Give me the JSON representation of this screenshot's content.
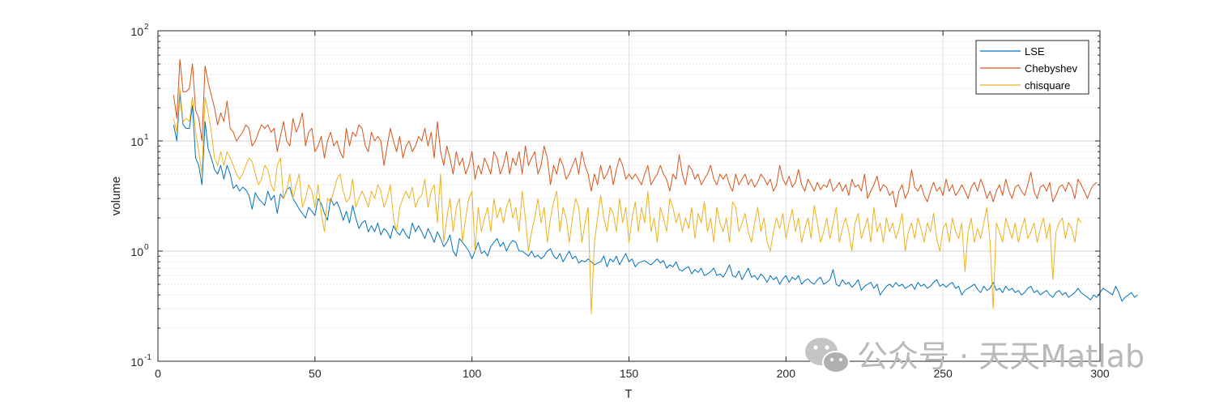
{
  "chart_data": {
    "type": "line",
    "title": "",
    "xlabel": "T",
    "ylabel": "volume",
    "xlim": [
      0,
      300
    ],
    "ylim": [
      0.1,
      100
    ],
    "yscale": "log",
    "grid": true,
    "minor_grid": true,
    "legend_position": "top-right",
    "x_ticks": [
      "0",
      "50",
      "100",
      "150",
      "200",
      "250",
      "300"
    ],
    "y_ticks": [
      {
        "base": "10",
        "exp": "-1"
      },
      {
        "base": "10",
        "exp": "0"
      },
      {
        "base": "10",
        "exp": "1"
      },
      {
        "base": "10",
        "exp": "2"
      }
    ],
    "x_start": 5,
    "x_step": 1,
    "series": [
      {
        "name": "LSE",
        "color": "#0072BD",
        "values": [
          14,
          10,
          27,
          14,
          13,
          13,
          21,
          7,
          6,
          4,
          15,
          8.5,
          7,
          5.5,
          5,
          6,
          4.5,
          6,
          5,
          3.7,
          4,
          3.5,
          3.8,
          3.6,
          3.2,
          2.4,
          3.4,
          3,
          2.8,
          2.6,
          3.5,
          2.9,
          3.2,
          2.2,
          3.3,
          3,
          3.6,
          3.8,
          3,
          2.7,
          2.4,
          2.2,
          2,
          2.5,
          2.3,
          2.1,
          3,
          2.7,
          2.2,
          1.9,
          3,
          2.6,
          2.8,
          2.4,
          1.9,
          2.3,
          1.8,
          2.6,
          2,
          1.6,
          1.8,
          1.9,
          1.5,
          1.7,
          1.5,
          1.8,
          1.4,
          1.6,
          1.5,
          1.3,
          1.7,
          1.5,
          1.4,
          1.6,
          1.4,
          1.3,
          1.8,
          1.5,
          1.7,
          1.5,
          1.3,
          1.6,
          1.4,
          1.2,
          1.5,
          1.3,
          1.1,
          1.2,
          1.4,
          1,
          0.9,
          1.3,
          1.2,
          1.1,
          1,
          0.85,
          1,
          1.2,
          0.95,
          1,
          0.9,
          1.1,
          1.2,
          1.3,
          1.1,
          1.2,
          1,
          1.15,
          1.25,
          1.2,
          1,
          1,
          0.95,
          0.9,
          1,
          0.88,
          0.92,
          0.85,
          0.9,
          1,
          1.05,
          0.9,
          0.85,
          0.95,
          0.8,
          0.9,
          1,
          0.85,
          0.9,
          0.78,
          0.82,
          0.8,
          0.85,
          0.8,
          0.75,
          0.78,
          0.8,
          0.9,
          0.72,
          0.85,
          0.8,
          0.9,
          0.75,
          0.85,
          0.95,
          0.8,
          0.85,
          0.72,
          0.78,
          0.8,
          0.82,
          0.78,
          0.75,
          0.8,
          0.85,
          0.78,
          0.82,
          0.7,
          0.75,
          0.72,
          0.8,
          0.68,
          0.66,
          0.7,
          0.72,
          0.62,
          0.68,
          0.64,
          0.7,
          0.6,
          0.62,
          0.65,
          0.7,
          0.6,
          0.62,
          0.58,
          0.65,
          0.75,
          0.6,
          0.58,
          0.66,
          0.55,
          0.62,
          0.7,
          0.58,
          0.6,
          0.55,
          0.62,
          0.58,
          0.52,
          0.6,
          0.55,
          0.58,
          0.5,
          0.56,
          0.6,
          0.52,
          0.58,
          0.55,
          0.6,
          0.5,
          0.54,
          0.56,
          0.52,
          0.5,
          0.55,
          0.58,
          0.5,
          0.52,
          0.55,
          0.68,
          0.5,
          0.48,
          0.55,
          0.5,
          0.52,
          0.47,
          0.5,
          0.55,
          0.44,
          0.48,
          0.5,
          0.52,
          0.46,
          0.5,
          0.4,
          0.44,
          0.48,
          0.5,
          0.47,
          0.52,
          0.48,
          0.5,
          0.46,
          0.48,
          0.5,
          0.45,
          0.52,
          0.48,
          0.5,
          0.46,
          0.48,
          0.52,
          0.55,
          0.48,
          0.5,
          0.47,
          0.5,
          0.52,
          0.46,
          0.48,
          0.4,
          0.44,
          0.46,
          0.48,
          0.5,
          0.45,
          0.42,
          0.48,
          0.44,
          0.46,
          0.52,
          0.44,
          0.46,
          0.42,
          0.48,
          0.44,
          0.46,
          0.42,
          0.44,
          0.4,
          0.42,
          0.46,
          0.48,
          0.42,
          0.44,
          0.4,
          0.42,
          0.44,
          0.4,
          0.38,
          0.42,
          0.44,
          0.4,
          0.42,
          0.38,
          0.4,
          0.42,
          0.46,
          0.42,
          0.4,
          0.38,
          0.36,
          0.4,
          0.38,
          0.42,
          0.46,
          0.44,
          0.42,
          0.4,
          0.48,
          0.42,
          0.35,
          0.38,
          0.4,
          0.42,
          0.38,
          0.4
        ]
      },
      {
        "name": "Chebyshev",
        "color": "#D95319",
        "values": [
          26,
          16,
          55,
          28,
          28,
          30,
          50,
          19,
          16,
          10,
          48,
          34,
          26,
          20,
          14,
          18,
          15,
          23,
          13,
          12,
          10,
          11,
          12,
          14,
          13,
          9,
          10,
          12,
          14,
          13,
          14,
          12,
          13,
          8,
          11,
          15,
          10,
          9,
          16,
          12,
          14,
          18,
          9,
          12,
          13,
          8,
          9,
          11,
          7,
          10,
          12,
          9,
          10,
          8,
          7,
          13,
          9,
          12,
          11,
          14,
          13,
          9,
          8,
          12,
          10,
          11,
          10,
          6,
          9,
          13,
          10,
          8,
          11,
          7,
          9,
          10,
          8,
          9,
          11,
          10,
          13,
          9,
          12,
          7,
          15,
          8,
          6,
          9,
          7,
          5,
          8,
          6,
          7,
          5,
          6,
          8,
          4.5,
          6,
          5,
          7,
          6,
          5,
          8,
          7,
          5,
          6,
          8,
          5,
          7,
          6,
          8,
          5,
          9,
          6,
          7,
          8,
          5,
          6,
          9,
          7,
          4,
          6,
          5,
          7,
          6,
          4.5,
          5,
          6,
          7,
          5,
          8,
          6,
          5,
          3.5,
          5,
          4,
          6,
          4.5,
          5,
          6,
          4,
          5.5,
          7,
          6,
          4.5,
          5,
          4.5,
          5,
          4.5,
          4,
          5,
          6,
          4,
          4.5,
          5,
          6,
          5,
          4.5,
          3.5,
          5,
          4.5,
          7.5,
          5,
          4,
          6,
          5.5,
          4.5,
          5,
          4,
          4.5,
          5,
          6,
          4.5,
          4,
          5,
          4.5,
          5,
          4,
          3.5,
          5,
          4,
          4.5,
          5,
          4,
          4.5,
          3.8,
          4.2,
          5,
          4.6,
          4,
          4.5,
          3.5,
          4,
          6,
          4.5,
          4,
          4.8,
          3.8,
          4.2,
          5.5,
          4,
          3.5,
          4.5,
          4,
          3.5,
          4.2,
          3.6,
          4,
          3.8,
          4.5,
          3.5,
          3.8,
          4.2,
          3.5,
          4,
          3.2,
          4.5,
          3.8,
          4,
          3.5,
          5,
          3,
          3.5,
          4,
          4.8,
          3.5,
          4,
          3.8,
          3.2,
          3.5,
          2.5,
          3.5,
          4,
          3,
          3.5,
          5.5,
          3.8,
          3.5,
          4,
          3.2,
          2.8,
          3.5,
          4.2,
          3.5,
          3.8,
          3.2,
          4.5,
          3.5,
          4,
          3.2,
          3.5,
          4,
          3.5,
          3,
          3.8,
          4.2,
          3.5,
          4.5,
          3.8,
          3,
          3.5,
          2.8,
          3.5,
          4,
          3.2,
          4.5,
          3.5,
          3,
          3.8,
          4,
          3.5,
          3.2,
          4,
          5.2,
          3.5,
          3,
          3.8,
          4,
          3.5,
          4.2,
          2.8,
          3.2,
          3.8,
          4,
          3.5,
          4.2,
          3.8,
          3,
          4.5,
          4,
          3.5,
          3,
          3.6,
          4,
          4.2
        ]
      },
      {
        "name": "chisquare",
        "color": "#EDB120",
        "values": [
          16,
          12,
          30,
          15,
          16,
          15,
          25,
          12,
          8,
          5,
          25,
          18,
          12,
          7,
          6,
          8,
          6,
          8,
          7,
          6,
          5,
          4.5,
          5,
          6,
          7,
          6.5,
          5,
          4,
          4.5,
          6,
          5.5,
          4,
          3.5,
          6,
          7,
          3,
          3.5,
          5,
          3,
          4,
          5,
          2.5,
          3,
          4,
          3.5,
          2.5,
          4,
          2.2,
          1.5,
          3,
          2.8,
          3.5,
          4.5,
          5,
          3.5,
          2.8,
          3,
          4.5,
          2.5,
          3,
          3.5,
          3,
          2.5,
          3.5,
          3,
          4,
          3.5,
          2.5,
          3,
          4,
          2,
          1.5,
          2.5,
          3,
          3.5,
          3,
          3.8,
          2.5,
          3,
          3.2,
          4.5,
          2.5,
          3.5,
          4,
          1.8,
          5,
          1.2,
          2,
          3,
          1.5,
          2.5,
          3,
          1.2,
          2,
          3,
          3.5,
          1,
          2.5,
          1.5,
          2,
          2.5,
          1.5,
          3,
          2,
          2.5,
          1.8,
          2.5,
          3,
          2,
          2.5,
          1.5,
          3.5,
          2,
          1,
          1.5,
          2,
          3,
          1.8,
          2.5,
          1.2,
          2,
          2.8,
          3.5,
          1.5,
          2.5,
          2,
          1.2,
          2,
          3,
          2.5,
          1.2,
          1.8,
          2.5,
          0.27,
          1.2,
          2,
          3.2,
          2,
          1.5,
          2.5,
          2.2,
          1.5,
          3,
          1.8,
          2.5,
          1.2,
          2,
          2.8,
          1.5,
          2.5,
          1.8,
          3.5,
          1.5,
          2,
          1.2,
          2.5,
          2,
          1.5,
          3,
          2.5,
          1.8,
          2.2,
          1.5,
          2,
          1.6,
          2.5,
          1.3,
          2.2,
          1.8,
          2.8,
          1.5,
          2,
          1.2,
          2.5,
          1.8,
          1.5,
          2,
          1.2,
          2.8,
          2.5,
          1.5,
          1.8,
          2.2,
          1.5,
          1.2,
          1.8,
          2.5,
          1.5,
          2,
          1.2,
          1,
          1.5,
          2,
          1.6,
          2.2,
          1.3,
          1.8,
          2.4,
          1.5,
          2,
          1.2,
          1.6,
          2,
          1.3,
          2.6,
          1.8,
          1.2,
          1.5,
          2,
          1.3,
          1.8,
          2.5,
          1.2,
          1.6,
          2,
          1.5,
          1,
          1.8,
          2.2,
          1.3,
          1.6,
          2,
          1.2,
          2.5,
          1.5,
          1.8,
          1.2,
          2,
          1.5,
          1.8,
          1.3,
          1.6,
          2.2,
          1,
          1.5,
          1.8,
          1.3,
          2,
          1.6,
          1.2,
          1.8,
          1.5,
          2.2,
          1.3,
          1,
          1.6,
          1.8,
          1.2,
          2,
          1.5,
          1.3,
          1.8,
          0.65,
          1.5,
          2,
          1.2,
          1.6,
          1.3,
          1.8,
          2.5,
          1.2,
          0.3,
          1.8,
          1.5,
          1.2,
          2,
          1.6,
          1.3,
          1.8,
          1.2,
          1.6,
          2,
          1.3,
          1.5,
          1.8,
          1.2,
          1.6,
          2,
          1.3,
          1.8,
          0.55,
          1.5,
          1.8,
          2,
          1.3,
          1.8,
          1.6,
          1.2,
          2,
          1.8
        ]
      }
    ]
  },
  "watermark": {
    "text": "公众号 · 天天Matlab",
    "icon": "wechat-icon"
  }
}
